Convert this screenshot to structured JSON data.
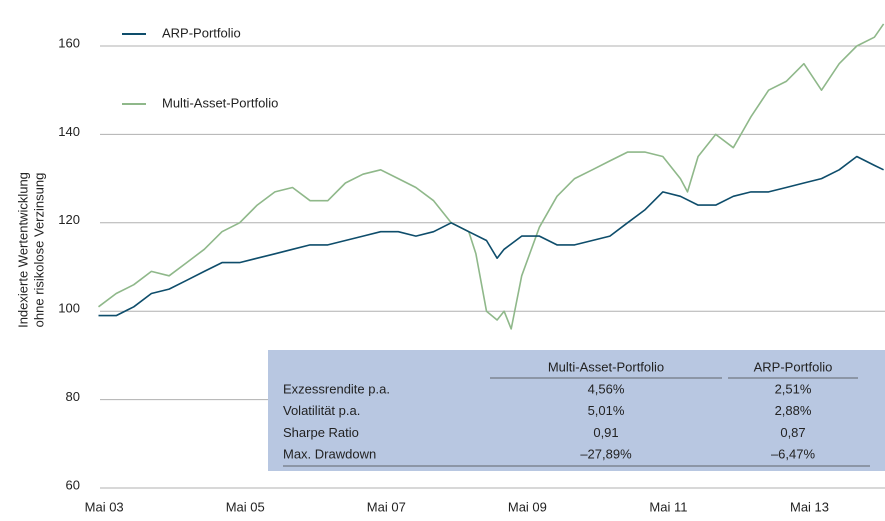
{
  "chart_data": {
    "type": "line",
    "ylabel": [
      "Indexierte Wertentwicklung",
      "ohne risikolose Verzinsung"
    ],
    "xlim": [
      2003.2,
      2014.4
    ],
    "xticks": [
      {
        "value": 2003.33,
        "label": "Mai 03"
      },
      {
        "value": 2005.33,
        "label": "Mai 05"
      },
      {
        "value": 2007.33,
        "label": "Mai 07"
      },
      {
        "value": 2009.33,
        "label": "Mai 09"
      },
      {
        "value": 2011.33,
        "label": "Mai 11"
      },
      {
        "value": 2013.33,
        "label": "Mai 13"
      }
    ],
    "ylim": [
      60,
      166
    ],
    "yticks": [
      60,
      80,
      100,
      120,
      140,
      160
    ],
    "grid": true,
    "legend": "top-left",
    "series": [
      {
        "name": "ARP-Portfolio",
        "color": "#0e4d6b",
        "x": [
          2003.25,
          2003.5,
          2003.75,
          2004.0,
          2004.25,
          2004.5,
          2004.75,
          2005.0,
          2005.25,
          2005.5,
          2005.75,
          2006.0,
          2006.25,
          2006.5,
          2006.75,
          2007.0,
          2007.25,
          2007.5,
          2007.75,
          2008.0,
          2008.25,
          2008.5,
          2008.75,
          2008.9,
          2009.0,
          2009.25,
          2009.5,
          2009.75,
          2010.0,
          2010.25,
          2010.5,
          2010.75,
          2011.0,
          2011.25,
          2011.5,
          2011.75,
          2012.0,
          2012.25,
          2012.5,
          2012.75,
          2013.0,
          2013.25,
          2013.5,
          2013.75,
          2014.0,
          2014.25,
          2014.38
        ],
        "values": [
          99,
          99,
          101,
          104,
          105,
          107,
          109,
          111,
          111,
          112,
          113,
          114,
          115,
          115,
          116,
          117,
          118,
          118,
          117,
          118,
          120,
          118,
          116,
          112,
          114,
          117,
          117,
          115,
          115,
          116,
          117,
          120,
          123,
          127,
          126,
          124,
          124,
          126,
          127,
          127,
          128,
          129,
          130,
          132,
          135,
          133,
          132
        ]
      },
      {
        "name": "Multi-Asset-Portfolio",
        "color": "#8fb88a",
        "x": [
          2003.25,
          2003.5,
          2003.75,
          2004.0,
          2004.25,
          2004.5,
          2004.75,
          2005.0,
          2005.25,
          2005.5,
          2005.75,
          2006.0,
          2006.25,
          2006.5,
          2006.75,
          2007.0,
          2007.25,
          2007.5,
          2007.75,
          2008.0,
          2008.25,
          2008.5,
          2008.6,
          2008.75,
          2008.9,
          2009.0,
          2009.1,
          2009.25,
          2009.5,
          2009.75,
          2010.0,
          2010.25,
          2010.5,
          2010.75,
          2011.0,
          2011.25,
          2011.5,
          2011.6,
          2011.75,
          2012.0,
          2012.25,
          2012.5,
          2012.75,
          2013.0,
          2013.25,
          2013.5,
          2013.75,
          2014.0,
          2014.25,
          2014.38
        ],
        "values": [
          101,
          104,
          106,
          109,
          108,
          111,
          114,
          118,
          120,
          124,
          127,
          128,
          125,
          125,
          129,
          131,
          132,
          130,
          128,
          125,
          120,
          118,
          113,
          100,
          98,
          100,
          96,
          108,
          119,
          126,
          130,
          132,
          134,
          136,
          136,
          135,
          130,
          127,
          135,
          140,
          137,
          144,
          150,
          152,
          156,
          150,
          156,
          160,
          162,
          165
        ]
      }
    ],
    "table": {
      "columns": [
        "Multi-Asset-Portfolio",
        "ARP-Portfolio"
      ],
      "rows": [
        {
          "label": "Exzessrendite p.a.",
          "values": [
            "4,56%",
            "2,51%"
          ]
        },
        {
          "label": "Volatilität p.a.",
          "values": [
            "5,01%",
            "2,88%"
          ]
        },
        {
          "label": "Sharpe Ratio",
          "values": [
            "0,91",
            "0,87"
          ]
        },
        {
          "label": "Max. Drawdown",
          "values": [
            "–27,89%",
            "–6,47%"
          ]
        }
      ]
    }
  }
}
